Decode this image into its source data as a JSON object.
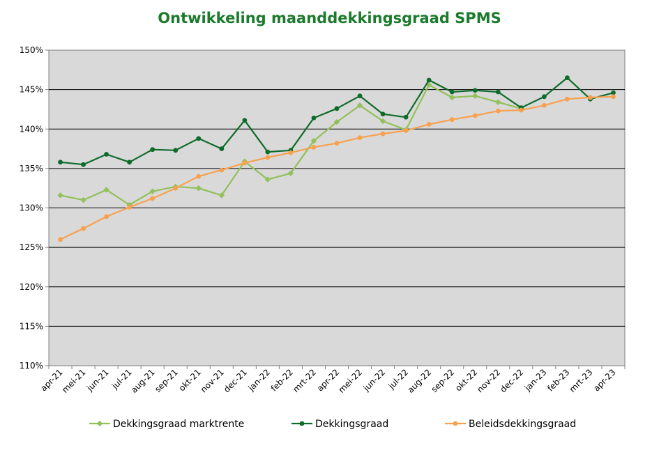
{
  "chart_data": {
    "type": "line",
    "title": "Ontwikkeling maanddekkingsgraad SPMS",
    "xlabel": "",
    "ylabel": "",
    "ylim": [
      110,
      150
    ],
    "y_ticks": [
      "110%",
      "115%",
      "120%",
      "125%",
      "130%",
      "135%",
      "140%",
      "145%",
      "150%"
    ],
    "grid": "horizontal",
    "legend_position": "bottom",
    "categories": [
      "apr-21",
      "mei-21",
      "jun-21",
      "jul-21",
      "aug-21",
      "sep-21",
      "okt-21",
      "nov-21",
      "dec-21",
      "jan-22",
      "feb-22",
      "mrt-22",
      "apr-22",
      "mei-22",
      "jun-22",
      "jul-22",
      "aug-22",
      "sep-22",
      "okt-22",
      "nov-22",
      "dec-22",
      "jan-23",
      "feb-23",
      "mrt-23",
      "apr-23"
    ],
    "series": [
      {
        "name": "Dekkingsgraad marktrente",
        "color": "#92c05a",
        "marker": "diamond",
        "values": [
          131.6,
          131.0,
          132.3,
          130.4,
          132.1,
          132.7,
          132.5,
          131.6,
          135.9,
          133.6,
          134.4,
          138.5,
          140.9,
          143.0,
          141.0,
          139.9,
          145.6,
          144.0,
          144.2,
          143.4,
          142.6,
          null,
          null,
          null,
          null
        ]
      },
      {
        "name": "Dekkingsgraad",
        "color": "#0e6b2a",
        "marker": "circle",
        "values": [
          135.8,
          135.5,
          136.8,
          135.8,
          137.4,
          137.3,
          138.8,
          137.5,
          141.1,
          137.1,
          137.3,
          141.4,
          142.6,
          144.2,
          141.9,
          141.5,
          146.2,
          144.7,
          144.9,
          144.7,
          142.7,
          144.1,
          146.5,
          143.8,
          144.6
        ]
      },
      {
        "name": "Beleidsdekkingsgraad",
        "color": "#f7a150",
        "marker": "circle",
        "values": [
          126.0,
          127.4,
          128.9,
          130.1,
          131.2,
          132.5,
          134.0,
          134.8,
          135.7,
          136.4,
          137.0,
          137.7,
          138.2,
          138.9,
          139.4,
          139.8,
          140.6,
          141.2,
          141.7,
          142.3,
          142.4,
          143.0,
          143.8,
          144.0,
          144.1
        ]
      }
    ]
  }
}
